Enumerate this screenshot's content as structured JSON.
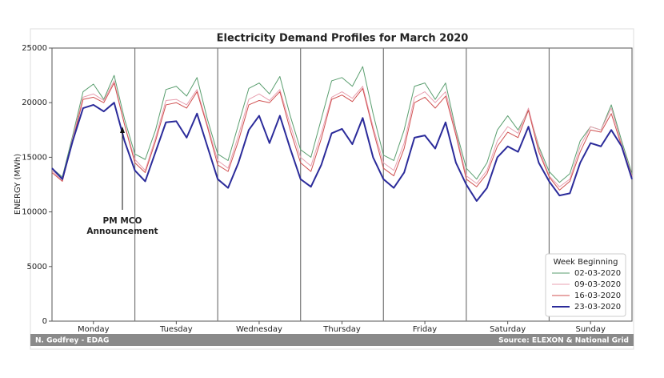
{
  "chart_data": {
    "type": "line",
    "title": "Electricity Demand Profiles for March 2020",
    "ylabel": "ENERGY (MWh)",
    "credit": "N. Godfrey - EDAG",
    "source": "Source: ELEXON & National Grid",
    "annotation": [
      "PM MCO",
      "Announcement"
    ],
    "legend_title": "Week Beginning",
    "legend": "lower right",
    "xlim": [
      0,
      168
    ],
    "ylim": [
      0,
      25000
    ],
    "yticks": [
      0,
      5000,
      10000,
      15000,
      20000,
      25000
    ],
    "xticks": [
      {
        "value": 12,
        "label": "Monday"
      },
      {
        "value": 36,
        "label": "Tuesday"
      },
      {
        "value": 60,
        "label": "Wednesday"
      },
      {
        "value": 84,
        "label": "Thursday"
      },
      {
        "value": 108,
        "label": "Friday"
      },
      {
        "value": 132,
        "label": "Saturday"
      },
      {
        "value": 156,
        "label": "Sunday"
      }
    ],
    "vlines": [
      24,
      48,
      72,
      96,
      120,
      144
    ],
    "x": [
      0,
      3,
      6,
      9,
      12,
      15,
      18,
      21,
      24,
      27,
      30,
      33,
      36,
      39,
      42,
      45,
      48,
      51,
      54,
      57,
      60,
      63,
      66,
      69,
      72,
      75,
      78,
      81,
      84,
      87,
      90,
      93,
      96,
      99,
      102,
      105,
      108,
      111,
      114,
      117,
      120,
      123,
      126,
      129,
      132,
      135,
      138,
      141,
      144,
      147,
      150,
      153,
      156,
      159,
      162,
      165,
      168
    ],
    "series": [
      {
        "name": "02-03-2020",
        "color": "#5a9e6f",
        "width": 1,
        "values": [
          14000,
          13200,
          17000,
          21000,
          21700,
          20300,
          22500,
          18500,
          15300,
          14800,
          17500,
          21200,
          21500,
          20600,
          22300,
          18500,
          15300,
          14700,
          18000,
          21300,
          21800,
          20800,
          22400,
          18800,
          15700,
          15000,
          18500,
          22000,
          22300,
          21500,
          23300,
          19000,
          15200,
          14700,
          17500,
          21500,
          21800,
          20300,
          21800,
          17500,
          14000,
          13000,
          14500,
          17500,
          18800,
          17500,
          19300,
          16000,
          13700,
          12700,
          13500,
          16500,
          17800,
          17500,
          19800,
          16500,
          13500
        ]
      },
      {
        "name": "09-03-2020",
        "color": "#e8a0b0",
        "width": 1,
        "values": [
          13800,
          12800,
          16800,
          20500,
          20800,
          20200,
          22000,
          18000,
          14800,
          13800,
          16800,
          20200,
          20300,
          19800,
          21200,
          18000,
          14700,
          14000,
          17000,
          20300,
          20800,
          20200,
          21200,
          18000,
          15000,
          14200,
          17200,
          20500,
          21000,
          20400,
          21500,
          17800,
          14500,
          13800,
          16300,
          20500,
          21000,
          20000,
          21000,
          17300,
          13300,
          12600,
          13800,
          16500,
          17800,
          17200,
          19500,
          15800,
          13300,
          12300,
          13000,
          16000,
          17800,
          17500,
          19500,
          16200,
          13300
        ]
      },
      {
        "name": "16-03-2020",
        "color": "#d05050",
        "width": 1,
        "values": [
          13600,
          12800,
          16500,
          20300,
          20500,
          20000,
          21800,
          18000,
          14500,
          13600,
          16500,
          19800,
          20000,
          19500,
          21000,
          17800,
          14300,
          13700,
          16500,
          19800,
          20200,
          20000,
          21000,
          17500,
          14500,
          13700,
          16700,
          20300,
          20700,
          20100,
          21300,
          17500,
          14000,
          13300,
          15800,
          20000,
          20500,
          19500,
          20600,
          17000,
          13000,
          12300,
          13500,
          16000,
          17300,
          16800,
          19300,
          15500,
          13200,
          12000,
          12800,
          15500,
          17500,
          17300,
          19000,
          16000,
          13200
        ]
      },
      {
        "name": "23-03-2020",
        "color": "#2b2b9a",
        "width": 2,
        "values": [
          14000,
          13000,
          16500,
          19500,
          19800,
          19200,
          20000,
          16500,
          13800,
          12800,
          15500,
          18200,
          18300,
          16800,
          19000,
          16000,
          13000,
          12200,
          14500,
          17500,
          18800,
          16300,
          18800,
          15800,
          13000,
          12300,
          14300,
          17200,
          17600,
          16200,
          18600,
          15000,
          13000,
          12200,
          13600,
          16800,
          17000,
          15800,
          18200,
          14500,
          12500,
          11000,
          12200,
          15000,
          16000,
          15500,
          17800,
          14500,
          12800,
          11500,
          11700,
          14500,
          16300,
          16000,
          17500,
          16000,
          13000
        ]
      }
    ]
  }
}
